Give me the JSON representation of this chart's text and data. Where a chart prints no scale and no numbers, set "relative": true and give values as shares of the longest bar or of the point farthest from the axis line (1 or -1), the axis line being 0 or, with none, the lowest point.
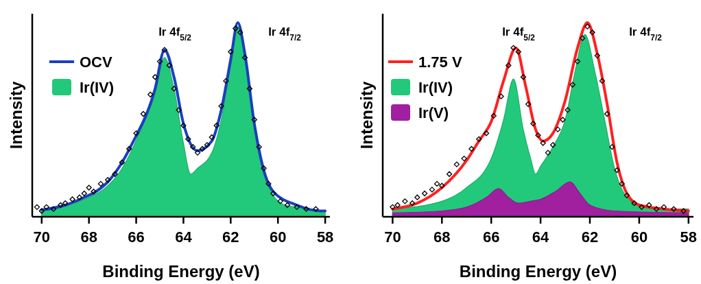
{
  "chart_data": [
    {
      "type": "area",
      "relative": true,
      "xlabel": "Binding Energy (eV)",
      "ylabel": "Intensity",
      "xlim": [
        70.4,
        57.8
      ],
      "xticks": [
        70,
        68,
        66,
        64,
        62,
        60,
        58
      ],
      "legend": "left",
      "tick_labels": "x",
      "annotations": [
        "Ir 4f$_{5/2}$",
        "Ir 4f$_{7/2}$"
      ],
      "series": [
        {
          "type": "line",
          "name": "OCV",
          "color": "#1a3fbf",
          "x": [
            70,
            69,
            68.2,
            67.7,
            67.2,
            66.7,
            66.2,
            65.2,
            64.8,
            64.4,
            64,
            63.4,
            62.8,
            62.4,
            62,
            61.7,
            61.4,
            61,
            60.6,
            60.2,
            59.2,
            58.2,
            58
          ],
          "values": [
            0.035,
            0.06,
            0.1,
            0.13,
            0.18,
            0.26,
            0.37,
            0.66,
            0.86,
            0.72,
            0.48,
            0.34,
            0.39,
            0.55,
            0.81,
            1.0,
            0.84,
            0.48,
            0.24,
            0.13,
            0.06,
            0.03,
            0.03
          ]
        },
        {
          "name": "Ir(IV)",
          "color": "#22c97a",
          "x": [
            70,
            69.2,
            68.2,
            67.2,
            66.7,
            66.2,
            65.7,
            65.2,
            64.8,
            64.4,
            64,
            63.7,
            63.4,
            62.8,
            62.4,
            62,
            61.7,
            61.4,
            61,
            60.6,
            60.2,
            59.7,
            59.2,
            58
          ],
          "values": [
            0.03,
            0.05,
            0.09,
            0.16,
            0.23,
            0.34,
            0.48,
            0.63,
            0.82,
            0.66,
            0.38,
            0.22,
            0.25,
            0.33,
            0.5,
            0.78,
            0.98,
            0.82,
            0.46,
            0.22,
            0.11,
            0.06,
            0.05,
            0.03
          ]
        },
        {
          "type": "scatter",
          "marker": "diamond",
          "color": "#000000",
          "x": [
            70.2,
            70,
            69.8,
            69.5,
            69.2,
            69,
            68.7,
            68.4,
            68.2,
            68,
            67.8,
            67.5,
            67.2,
            66.9,
            66.6,
            66.3,
            66,
            65.7,
            65.4,
            65.2,
            65,
            64.8,
            64.6,
            64.4,
            64.2,
            64,
            63.8,
            63.6,
            63.4,
            63.2,
            63,
            62.8,
            62.6,
            62.4,
            62.2,
            62,
            61.8,
            61.6,
            61.4,
            61.2,
            61,
            60.8,
            60.6,
            60.4,
            60.2,
            59.9,
            59.6,
            59.2,
            58.8,
            58.4
          ],
          "values": [
            0.05,
            0.03,
            0.05,
            0.04,
            0.06,
            0.07,
            0.09,
            0.1,
            0.12,
            0.15,
            0.13,
            0.17,
            0.19,
            0.22,
            0.28,
            0.35,
            0.43,
            0.53,
            0.63,
            0.72,
            0.8,
            0.86,
            0.78,
            0.66,
            0.55,
            0.47,
            0.4,
            0.36,
            0.33,
            0.35,
            0.37,
            0.41,
            0.47,
            0.57,
            0.7,
            0.85,
            0.97,
            0.95,
            0.82,
            0.66,
            0.5,
            0.36,
            0.25,
            0.17,
            0.12,
            0.08,
            0.06,
            0.05,
            0.04,
            0.04
          ]
        }
      ]
    },
    {
      "type": "area",
      "relative": true,
      "xlabel": "Binding Energy (eV)",
      "ylabel": "Intensity",
      "xlim": [
        70.4,
        57.8
      ],
      "xticks": [
        70,
        68,
        66,
        64,
        62,
        60,
        58
      ],
      "legend": "left",
      "tick_labels": "x",
      "annotations": [
        "Ir 4f$_{5/2}$",
        "Ir 4f$_{7/2}$"
      ],
      "series": [
        {
          "type": "line",
          "name": "1.75 V",
          "color": "#ff2020",
          "x": [
            70,
            69,
            68,
            67,
            66.5,
            66,
            65.5,
            65,
            64.6,
            64.2,
            63.9,
            63.5,
            63,
            62.5,
            62.1,
            61.7,
            61.3,
            60.9,
            60.5,
            60,
            59,
            58
          ],
          "values": [
            0.04,
            0.07,
            0.15,
            0.29,
            0.39,
            0.49,
            0.7,
            0.87,
            0.67,
            0.45,
            0.39,
            0.43,
            0.6,
            0.87,
            1.0,
            0.84,
            0.58,
            0.28,
            0.12,
            0.06,
            0.04,
            0.03
          ]
        },
        {
          "name": "Ir(IV)",
          "color": "#22c97a",
          "x": [
            70,
            68,
            67,
            66,
            65.5,
            65.1,
            64.7,
            64.4,
            64.2,
            64,
            63.5,
            63,
            62.6,
            62.2,
            61.8,
            61.4,
            61,
            60.5,
            60,
            59,
            58
          ],
          "values": [
            0.04,
            0.08,
            0.15,
            0.3,
            0.5,
            0.71,
            0.45,
            0.3,
            0.22,
            0.26,
            0.36,
            0.5,
            0.75,
            0.94,
            0.75,
            0.5,
            0.25,
            0.1,
            0.06,
            0.04,
            0.04
          ]
        },
        {
          "name": "Ir(V)",
          "color": "#a020a0",
          "x": [
            70,
            68,
            67,
            66.2,
            65.7,
            65.3,
            64.9,
            64.4,
            64,
            63.4,
            62.8,
            62.4,
            62,
            61,
            58
          ],
          "values": [
            0.02,
            0.03,
            0.05,
            0.1,
            0.145,
            0.1,
            0.07,
            0.08,
            0.09,
            0.13,
            0.18,
            0.12,
            0.06,
            0.03,
            0.02
          ]
        },
        {
          "type": "scatter",
          "marker": "diamond",
          "color": "#000000",
          "x": [
            70,
            69.8,
            69.5,
            69.2,
            69,
            68.7,
            68.4,
            68.2,
            68,
            67.7,
            67.4,
            67.1,
            66.8,
            66.5,
            66.2,
            65.9,
            65.6,
            65.3,
            65.1,
            64.9,
            64.7,
            64.5,
            64.3,
            64.1,
            63.9,
            63.7,
            63.5,
            63.3,
            63.1,
            62.9,
            62.7,
            62.5,
            62.3,
            62.1,
            61.9,
            61.7,
            61.5,
            61.3,
            61.1,
            60.9,
            60.7,
            60.5,
            60.2,
            59.9,
            59.6,
            59.3,
            59,
            58.6,
            58.2
          ],
          "values": [
            0.05,
            0.06,
            0.08,
            0.07,
            0.1,
            0.12,
            0.14,
            0.17,
            0.16,
            0.22,
            0.27,
            0.3,
            0.35,
            0.4,
            0.43,
            0.52,
            0.62,
            0.78,
            0.87,
            0.85,
            0.72,
            0.58,
            0.48,
            0.42,
            0.38,
            0.33,
            0.37,
            0.45,
            0.5,
            0.55,
            0.68,
            0.8,
            0.92,
            0.98,
            0.95,
            0.83,
            0.7,
            0.53,
            0.36,
            0.24,
            0.17,
            0.11,
            0.07,
            0.05,
            0.06,
            0.04,
            0.05,
            0.04,
            0.03
          ]
        }
      ]
    }
  ]
}
